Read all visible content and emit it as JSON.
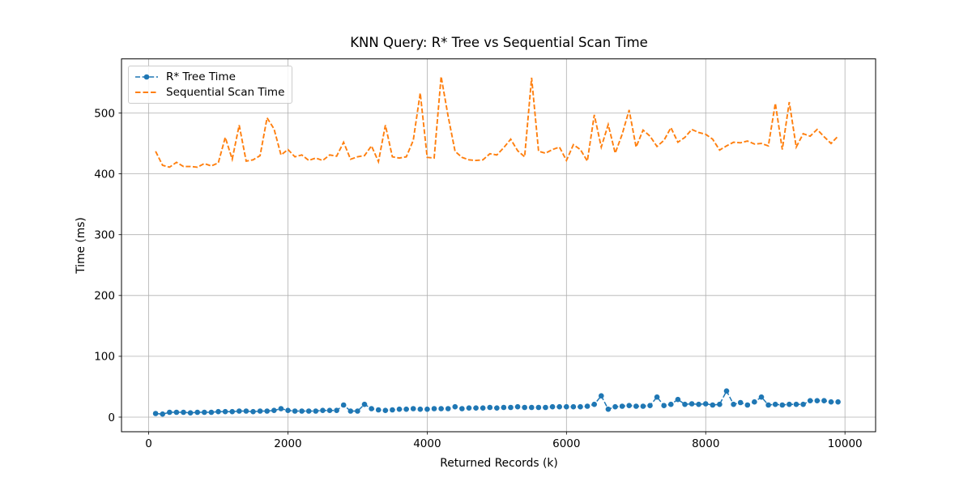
{
  "chart_data": {
    "type": "line",
    "title": "KNN Query: R* Tree vs Sequential Scan Time",
    "xlabel": "Returned Records (k)",
    "ylabel": "Time (ms)",
    "grid": true,
    "legend_position": "upper left",
    "x_ticks": [
      0,
      2000,
      4000,
      6000,
      8000,
      10000
    ],
    "y_ticks": [
      0,
      100,
      200,
      300,
      400,
      500
    ],
    "xlim": [
      -390,
      10440
    ],
    "ylim": [
      -24,
      589
    ],
    "x": [
      100,
      200,
      300,
      400,
      500,
      600,
      700,
      800,
      900,
      1000,
      1100,
      1200,
      1300,
      1400,
      1500,
      1600,
      1700,
      1800,
      1900,
      2000,
      2100,
      2200,
      2300,
      2400,
      2500,
      2600,
      2700,
      2800,
      2900,
      3000,
      3100,
      3200,
      3300,
      3400,
      3500,
      3600,
      3700,
      3800,
      3900,
      4000,
      4100,
      4200,
      4300,
      4400,
      4500,
      4600,
      4700,
      4800,
      4900,
      5000,
      5100,
      5200,
      5300,
      5400,
      5500,
      5600,
      5700,
      5800,
      5900,
      6000,
      6100,
      6200,
      6300,
      6400,
      6500,
      6600,
      6700,
      6800,
      6900,
      7000,
      7100,
      7200,
      7300,
      7400,
      7500,
      7600,
      7700,
      7800,
      7900,
      8000,
      8100,
      8200,
      8300,
      8400,
      8500,
      8600,
      8700,
      8800,
      8900,
      9000,
      9100,
      9200,
      9300,
      9400,
      9500,
      9600,
      9700,
      9800,
      9900
    ],
    "series": [
      {
        "name": "R* Tree Time",
        "color": "#1f77b4",
        "linestyle": "dashed",
        "marker": "circle",
        "values": [
          6,
          5,
          8,
          8,
          8,
          7,
          8,
          8,
          8,
          9,
          9,
          9,
          10,
          10,
          9,
          10,
          10,
          11,
          14,
          11,
          10,
          10,
          10,
          10,
          11,
          11,
          11,
          20,
          10,
          10,
          21,
          14,
          12,
          11,
          12,
          13,
          13,
          14,
          13,
          13,
          14,
          14,
          14,
          17,
          14,
          15,
          15,
          15,
          16,
          15,
          16,
          16,
          17,
          16,
          16,
          16,
          16,
          17,
          17,
          17,
          17,
          17,
          18,
          21,
          35,
          13,
          17,
          18,
          19,
          18,
          18,
          19,
          33,
          19,
          21,
          29,
          21,
          22,
          21,
          22,
          20,
          21,
          43,
          21,
          24,
          20,
          25,
          33,
          20,
          21,
          20,
          21,
          21,
          21,
          27,
          27,
          27,
          25,
          25
        ]
      },
      {
        "name": "Sequential Scan Time",
        "color": "#ff7f0e",
        "linestyle": "dashed",
        "marker": "none",
        "values": [
          437,
          414,
          411,
          419,
          412,
          412,
          411,
          417,
          413,
          418,
          460,
          424,
          480,
          421,
          423,
          430,
          492,
          474,
          431,
          440,
          428,
          431,
          422,
          426,
          422,
          431,
          429,
          452,
          424,
          428,
          430,
          446,
          420,
          480,
          428,
          426,
          428,
          455,
          533,
          427,
          426,
          560,
          495,
          437,
          427,
          423,
          422,
          423,
          433,
          431,
          443,
          457,
          438,
          428,
          558,
          437,
          434,
          440,
          444,
          422,
          448,
          440,
          421,
          497,
          444,
          481,
          434,
          465,
          505,
          444,
          472,
          462,
          445,
          455,
          476,
          452,
          460,
          473,
          468,
          465,
          457,
          439,
          446,
          452,
          451,
          454,
          449,
          450,
          446,
          516,
          440,
          518,
          444,
          466,
          462,
          473,
          461,
          450,
          462
        ]
      }
    ],
    "style": {
      "grid_color": "#b0b0b0",
      "spine_color": "#000000",
      "tick_label_color": "#000000",
      "background": "#ffffff"
    }
  }
}
